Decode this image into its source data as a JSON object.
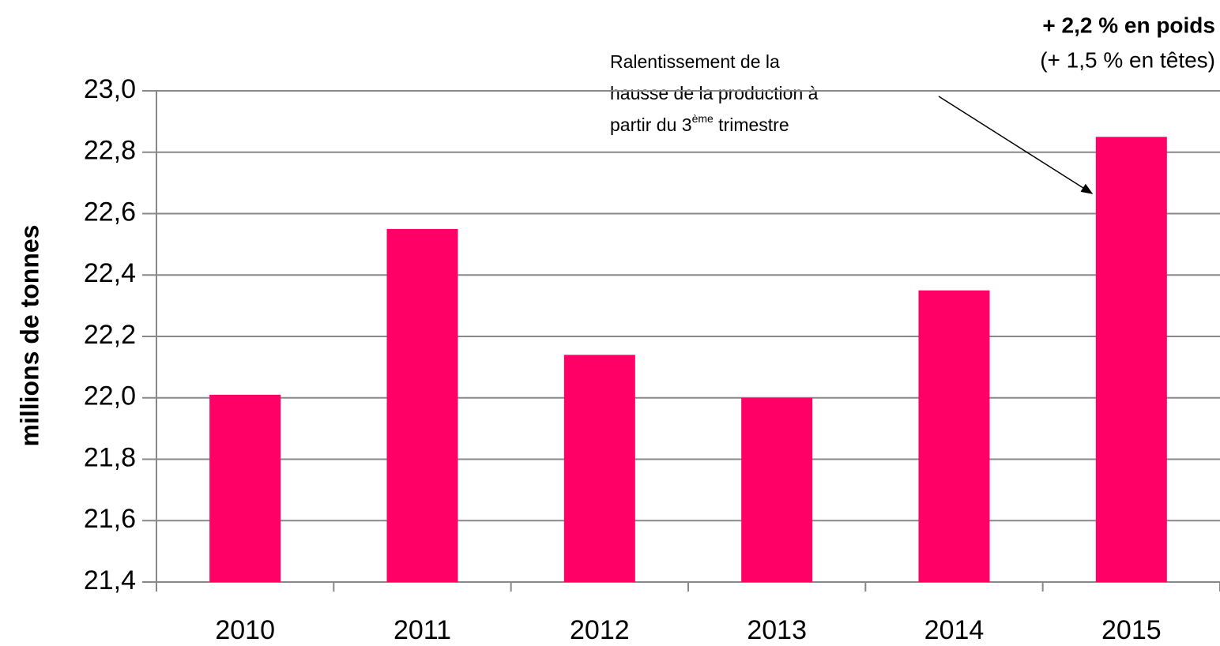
{
  "chart_data": {
    "type": "bar",
    "y_label": "millions de tonnes",
    "categories": [
      "2010",
      "2011",
      "2012",
      "2013",
      "2014",
      "2015"
    ],
    "values": [
      22.01,
      22.55,
      22.14,
      22.0,
      22.35,
      22.85
    ],
    "color": "#ff0066",
    "ylim": [
      21.4,
      23.0
    ],
    "yticks": [
      {
        "value": 21.4,
        "label": "21,4"
      },
      {
        "value": 21.6,
        "label": "21,6"
      },
      {
        "value": 21.8,
        "label": "21,8"
      },
      {
        "value": 22.0,
        "label": "22,0"
      },
      {
        "value": 22.2,
        "label": "22,2"
      },
      {
        "value": 22.4,
        "label": "22,4"
      },
      {
        "value": 22.6,
        "label": "22,6"
      },
      {
        "value": 22.8,
        "label": "22,8"
      },
      {
        "value": 23.0,
        "label": "23,0"
      }
    ],
    "grid": true,
    "annotations": {
      "highlight": "+ 2,2 % en poids",
      "highlight_sub": "(+ 1,5 % en têtes)",
      "note_line1": "Ralentissement de la",
      "note_line2": "hausse de la production à",
      "note_line3_a": "partir du 3",
      "note_line3_sup": "ème",
      "note_line3_b": " trimestre"
    }
  }
}
